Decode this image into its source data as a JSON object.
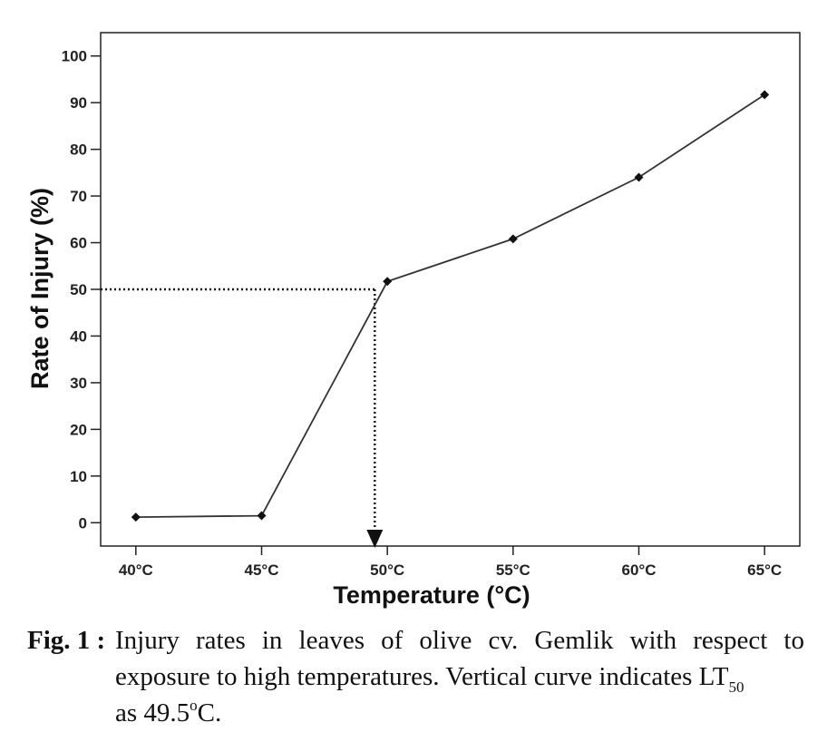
{
  "chart_data": {
    "type": "line",
    "xlabel": "Temperature (°C)",
    "ylabel": "Rate of Injury (%)",
    "categories": [
      "40°C",
      "45°C",
      "50°C",
      "55°C",
      "60°C",
      "65°C"
    ],
    "x": [
      40,
      45,
      50,
      55,
      60,
      65
    ],
    "values": [
      1.2,
      1.5,
      51.7,
      60.8,
      74.0,
      91.7
    ],
    "yticks": [
      0,
      10,
      20,
      30,
      40,
      50,
      60,
      70,
      80,
      90,
      100
    ],
    "ylim": [
      -5,
      105
    ],
    "xlim": [
      38.6,
      66.4
    ],
    "grid": false,
    "line_color": "#333333",
    "marker": "diamond",
    "annotation": {
      "type": "LT50 guide",
      "x": 49.5,
      "y": 50,
      "style": "dotted",
      "arrow": "down"
    }
  },
  "caption": {
    "label": "Fig. 1 :",
    "text_main": "Injury rates in leaves of olive cv. Gemlik with respect to exposure to high temperatures. Vertical curve indicates LT",
    "text_sub": "50",
    "text_as": "as 49.5",
    "text_sup": "o",
    "text_unit": "C."
  }
}
